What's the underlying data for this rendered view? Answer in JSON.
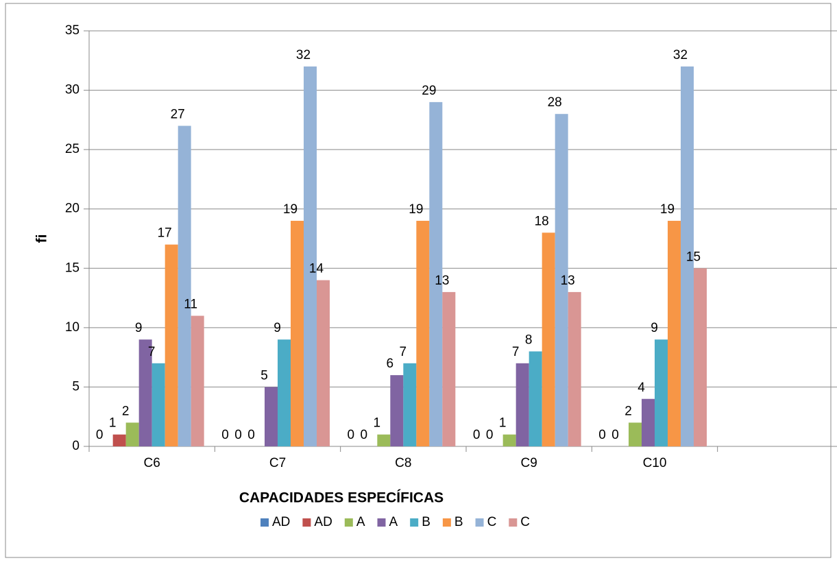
{
  "chart_data": {
    "type": "bar",
    "x_label": "CAPACIDADES ESPECÍFICAS",
    "y_label": "fi",
    "categories": [
      "C6",
      "C7",
      "C8",
      "C9",
      "C10",
      null
    ],
    "series": [
      {
        "name": "AD",
        "color": "#4f81bd",
        "values": [
          0,
          0,
          0,
          0,
          0,
          null
        ]
      },
      {
        "name": "AD",
        "color": "#c0504d",
        "values": [
          1,
          0,
          0,
          0,
          0,
          null
        ]
      },
      {
        "name": "A",
        "color": "#9bbb59",
        "values": [
          2,
          0,
          1,
          1,
          2,
          null
        ]
      },
      {
        "name": "A",
        "color": "#8064a2",
        "values": [
          9,
          5,
          6,
          7,
          4,
          null
        ]
      },
      {
        "name": "B",
        "color": "#4bacc6",
        "values": [
          7,
          9,
          7,
          8,
          9,
          null
        ]
      },
      {
        "name": "B",
        "color": "#f79646",
        "values": [
          17,
          19,
          19,
          18,
          19,
          null
        ]
      },
      {
        "name": "C",
        "color": "#95b3d7",
        "values": [
          27,
          32,
          29,
          28,
          32,
          null
        ]
      },
      {
        "name": "C",
        "color": "#d99694",
        "values": [
          11,
          14,
          13,
          13,
          15,
          null
        ]
      }
    ],
    "ylim": [
      0,
      35
    ],
    "yticks": [
      0,
      5,
      10,
      15,
      20,
      25,
      30,
      35
    ],
    "grid": true,
    "legend": "bottom"
  }
}
